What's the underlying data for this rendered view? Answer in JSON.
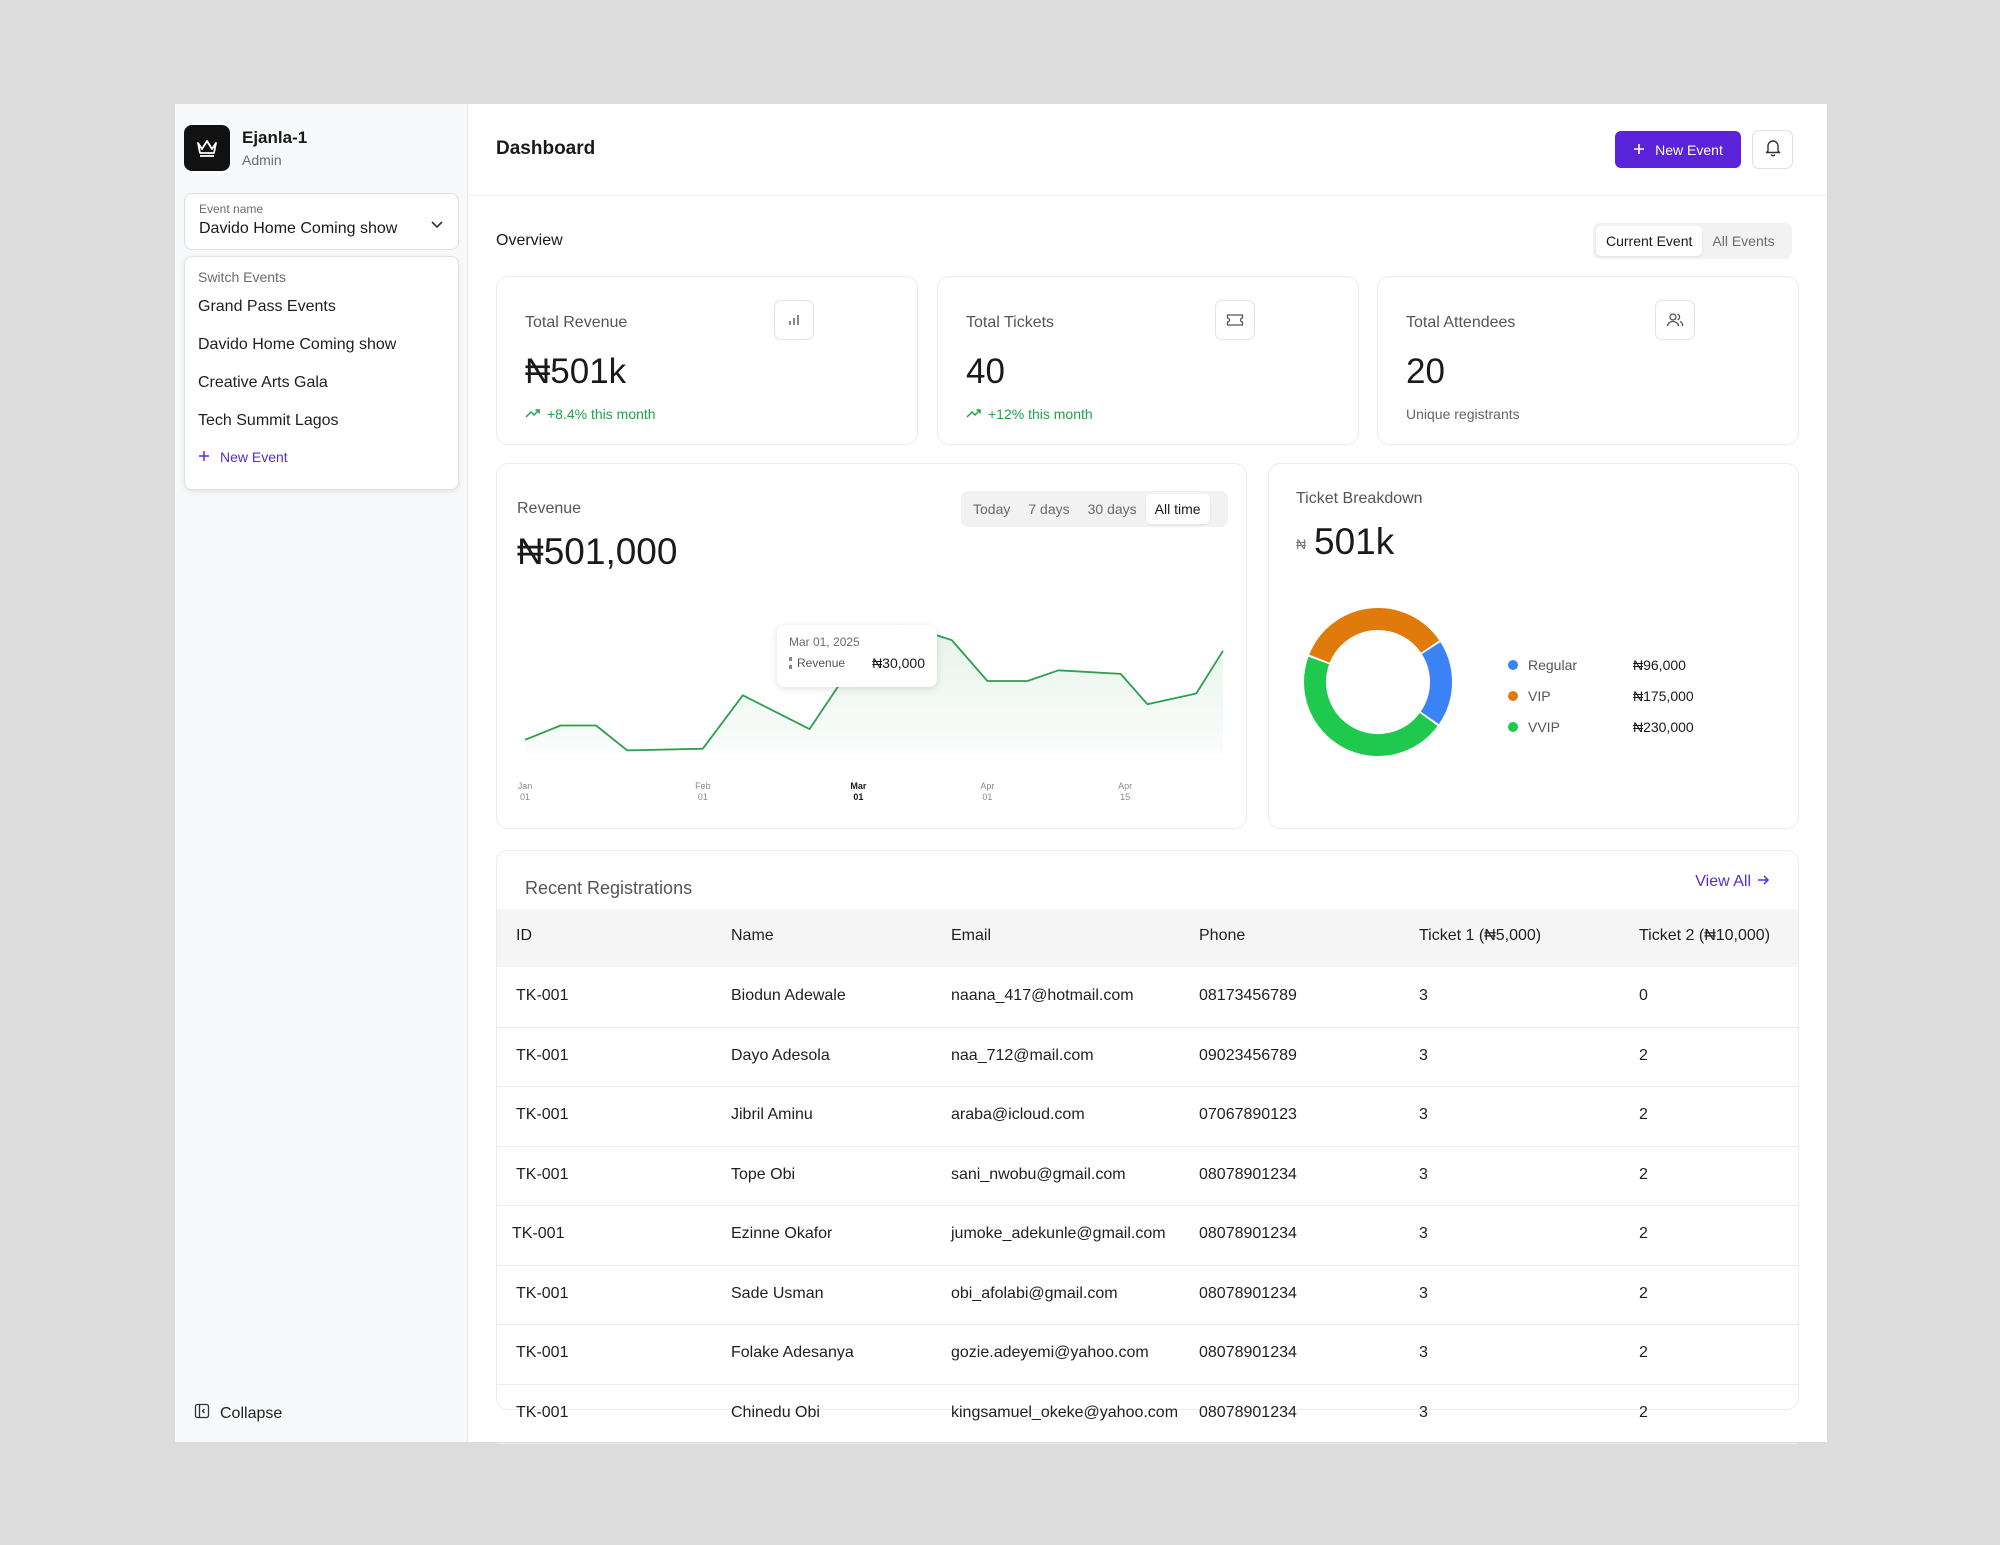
{
  "sidebar": {
    "brand": {
      "name": "Ejanla-1",
      "role": "Admin"
    },
    "event_select": {
      "label": "Event name",
      "value": "Davido Home Coming show"
    },
    "dropdown": {
      "heading": "Switch Events",
      "items": [
        "Grand Pass Events",
        "Davido Home Coming show",
        "Creative Arts Gala",
        "Tech Summit Lagos"
      ],
      "new_event": "New Event"
    },
    "collapse": "Collapse"
  },
  "header": {
    "title": "Dashboard",
    "new_event_button": "New Event"
  },
  "overview": {
    "title": "Overview",
    "scope_tabs": [
      {
        "label": "Current Event",
        "active": true
      },
      {
        "label": "All Events",
        "active": false
      }
    ]
  },
  "stats": [
    {
      "label": "Total Revenue",
      "value": "₦501k",
      "sub": "+8.4% this month",
      "trend": "up",
      "icon": "bar-chart-icon"
    },
    {
      "label": "Total Tickets",
      "value": "40",
      "sub": "+12% this month",
      "trend": "up",
      "icon": "ticket-icon"
    },
    {
      "label": "Total Attendees",
      "value": "20",
      "sub": "Unique registrants",
      "trend": "none",
      "icon": "users-icon"
    }
  ],
  "revenue": {
    "label": "Revenue",
    "total": "₦501,000",
    "ranges": [
      {
        "label": "Today",
        "active": false
      },
      {
        "label": "7 days",
        "active": false
      },
      {
        "label": "30 days",
        "active": false
      },
      {
        "label": "All time",
        "active": true
      }
    ],
    "tooltip": {
      "date": "Mar 01, 2025",
      "label": "Revenue",
      "value": "₦30,000"
    },
    "chart_data": {
      "type": "area",
      "color": "#2e9e4f",
      "x_ticks": [
        {
          "month": "Jan",
          "day": "01",
          "x": 0,
          "active": false
        },
        {
          "month": "Feb",
          "day": "01",
          "x": 4,
          "active": false
        },
        {
          "month": "Mar",
          "day": "01",
          "x": 7.5,
          "active": true
        },
        {
          "month": "Apr",
          "day": "01",
          "x": 10.4,
          "active": false
        },
        {
          "month": "Apr",
          "day": "15",
          "x": 13.5,
          "active": false
        }
      ],
      "points": [
        [
          0,
          8
        ],
        [
          0.8,
          16
        ],
        [
          1.6,
          16
        ],
        [
          2.3,
          2
        ],
        [
          4,
          3
        ],
        [
          4.9,
          33
        ],
        [
          6.4,
          14
        ],
        [
          7.5,
          55
        ],
        [
          8.4,
          72
        ],
        [
          9.1,
          68
        ],
        [
          9.6,
          64
        ],
        [
          10.4,
          41
        ],
        [
          11.3,
          41
        ],
        [
          12,
          47
        ],
        [
          13.4,
          45
        ],
        [
          14,
          28
        ],
        [
          15.1,
          34
        ],
        [
          15.7,
          58
        ]
      ],
      "ylim": [
        0,
        100
      ],
      "xlim": [
        0,
        15.7
      ]
    }
  },
  "ticket_breakdown": {
    "label": "Ticket Breakdown",
    "currency": "₦",
    "total": "501k",
    "chart_data": {
      "type": "pie",
      "style": "donut",
      "slices": [
        {
          "name": "Regular",
          "value": 96000,
          "display": "₦96,000",
          "color": "#3b82f6"
        },
        {
          "name": "VIP",
          "value": 175000,
          "display": "₦175,000",
          "color": "#e07b0b"
        },
        {
          "name": "VVIP",
          "value": 230000,
          "display": "₦230,000",
          "color": "#1fc94e"
        }
      ]
    }
  },
  "registrations": {
    "title": "Recent Registrations",
    "view_all": "View All",
    "columns": [
      "ID",
      "Name",
      "Email",
      "Phone",
      "Ticket 1 (₦5,000)",
      "Ticket 2  (₦10,000)"
    ],
    "rows": [
      [
        "TK-001",
        "Biodun Adewale",
        "naana_417@hotmail.com",
        "08173456789",
        "3",
        "0"
      ],
      [
        "TK-001",
        "Dayo Adesola",
        "naa_712@mail.com",
        "09023456789",
        "3",
        "2"
      ],
      [
        "TK-001",
        "Jibril Aminu",
        "araba@icloud.com",
        "07067890123",
        "3",
        "2"
      ],
      [
        "TK-001",
        "Tope Obi",
        "sani_nwobu@gmail.com",
        "08078901234",
        "3",
        "2"
      ],
      [
        "TK-001",
        "Ezinne Okafor",
        "jumoke_adekunle@gmail.com",
        "08078901234",
        "3",
        "2"
      ],
      [
        "TK-001",
        "Sade Usman",
        "obi_afolabi@gmail.com",
        "08078901234",
        "3",
        "2"
      ],
      [
        "TK-001",
        "Folake Adesanya",
        "gozie.adeyemi@yahoo.com",
        "08078901234",
        "3",
        "2"
      ],
      [
        "TK-001",
        "Chinedu Obi",
        "kingsamuel_okeke@yahoo.com",
        "08078901234",
        "3",
        "2"
      ]
    ]
  }
}
